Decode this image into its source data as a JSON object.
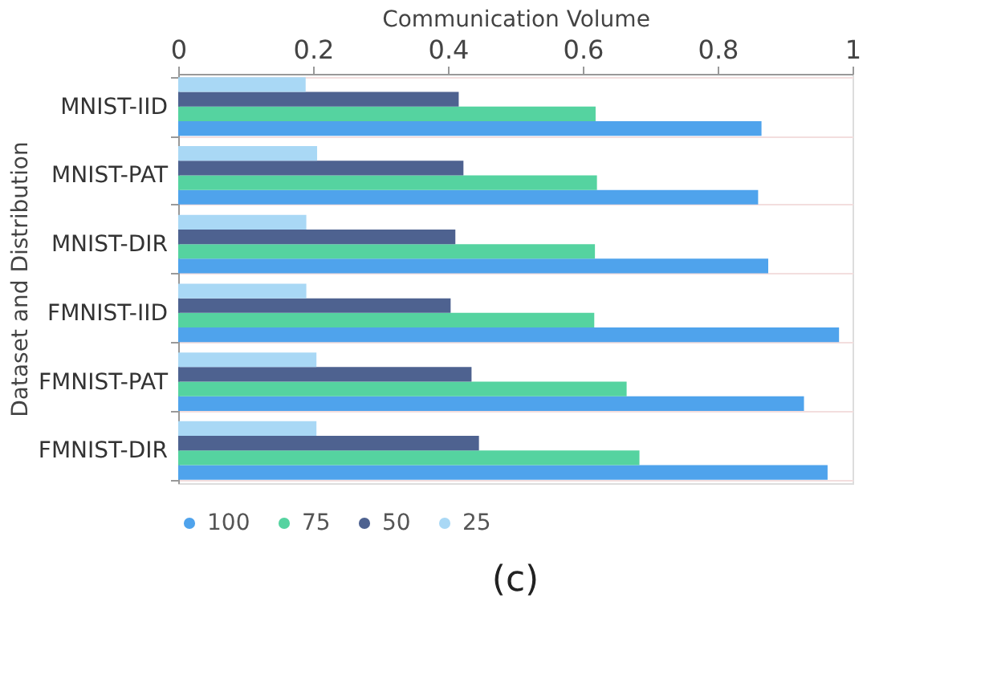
{
  "chart_data": {
    "type": "bar",
    "orientation": "horizontal",
    "xlabel": "Communication Volume",
    "ylabel": "Dataset and Distribution",
    "categories": [
      "MNIST-IID",
      "MNIST-PAT",
      "MNIST-DIR",
      "FMNIST-IID",
      "FMNIST-PAT",
      "FMNIST-DIR"
    ],
    "series": [
      {
        "name": "100",
        "color": "#4fa3ec",
        "values": [
          0.865,
          0.86,
          0.875,
          0.98,
          0.928,
          0.963
        ]
      },
      {
        "name": "75",
        "color": "#55d3a0",
        "values": [
          0.619,
          0.621,
          0.618,
          0.617,
          0.665,
          0.684
        ]
      },
      {
        "name": "50",
        "color": "#4e6290",
        "values": [
          0.416,
          0.423,
          0.411,
          0.404,
          0.435,
          0.446
        ]
      },
      {
        "name": "25",
        "color": "#a9d8f5",
        "values": [
          0.189,
          0.206,
          0.19,
          0.19,
          0.205,
          0.205
        ]
      }
    ],
    "xlim": [
      0,
      1
    ],
    "xticks": [
      0,
      0.2,
      0.4,
      0.6,
      0.8,
      1
    ],
    "grid": "y",
    "legend": "bottom",
    "annotations": [
      "(c)"
    ]
  }
}
